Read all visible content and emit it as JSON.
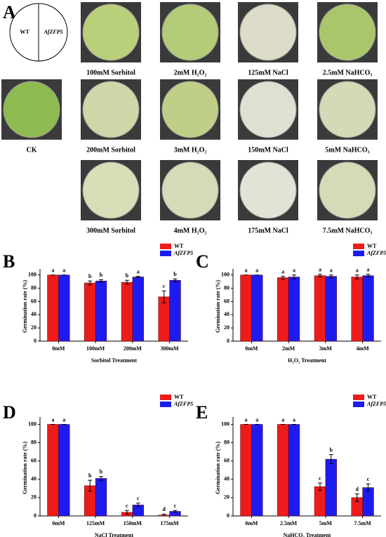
{
  "panel_a": {
    "panel": "A",
    "schematic": [
      "WT",
      "AfZFP5"
    ],
    "labels": [
      "100mM Sorbitol",
      "2mM H₂O₂",
      "125mM NaCl",
      "2.5mM NaHCO₃",
      "CK",
      "200mM Sorbitol",
      "3mM H₂O₂",
      "150mM NaCl",
      "5mM NaHCO₃",
      "300mM Sorbitol",
      "4mM H₂O₂",
      "175mM NaCl",
      "7.5mM NaHCO₃"
    ]
  },
  "chart_data": [
    {
      "type": "bar",
      "panel": "B",
      "y_label": "Germination rate (%)",
      "x_label": "Sorbitol Treatment",
      "categories": [
        "0mM",
        "100mM",
        "200mM",
        "300mM"
      ],
      "ylim": [
        0,
        105
      ],
      "yticks": [
        0,
        20,
        40,
        60,
        80,
        100
      ],
      "series": [
        {
          "name": "WT",
          "color": "#ee1b1b",
          "values": [
            100,
            88,
            89,
            67
          ],
          "errors": [
            0,
            3,
            3,
            9
          ],
          "letters": [
            "a",
            "b",
            "b",
            "c"
          ]
        },
        {
          "name": "AfZFP5",
          "color": "#1c1cf0",
          "values": [
            100,
            91,
            97,
            92
          ],
          "errors": [
            0,
            2,
            1,
            2
          ],
          "letters": [
            "a",
            "b",
            "a",
            "b"
          ]
        }
      ]
    },
    {
      "type": "bar",
      "panel": "C",
      "y_label": "Germination rate (%)",
      "x_label": "H₂O₂ Treatment",
      "categories": [
        "0mM",
        "2mM",
        "3mM",
        "4mM"
      ],
      "ylim": [
        0,
        105
      ],
      "yticks": [
        0,
        20,
        40,
        60,
        80,
        100
      ],
      "series": [
        {
          "name": "WT",
          "color": "#ee1b1b",
          "values": [
            100,
            96,
            99,
            97
          ],
          "errors": [
            0,
            2,
            2,
            3
          ],
          "letters": [
            "a",
            "a",
            "a",
            "a"
          ]
        },
        {
          "name": "AfZFP5",
          "color": "#1c1cf0",
          "values": [
            100,
            97,
            98,
            99
          ],
          "errors": [
            0,
            3,
            2,
            2
          ],
          "letters": [
            "a",
            "a",
            "a",
            "a"
          ]
        }
      ]
    },
    {
      "type": "bar",
      "panel": "D",
      "y_label": "Germination rate (%)",
      "x_label": "NaCl Treatment",
      "categories": [
        "0mM",
        "125mM",
        "150mM",
        "175mM"
      ],
      "ylim": [
        0,
        105
      ],
      "yticks": [
        0,
        20,
        40,
        60,
        80,
        100
      ],
      "series": [
        {
          "name": "WT",
          "color": "#ee1b1b",
          "values": [
            100,
            33,
            4,
            1
          ],
          "errors": [
            0,
            6,
            2,
            1
          ],
          "letters": [
            "a",
            "b",
            "c",
            "d"
          ]
        },
        {
          "name": "AfZFP5",
          "color": "#1c1cf0",
          "values": [
            100,
            41,
            12,
            5
          ],
          "errors": [
            0,
            2,
            2,
            1
          ],
          "letters": [
            "a",
            "b",
            "c",
            "c"
          ]
        }
      ]
    },
    {
      "type": "bar",
      "panel": "E",
      "y_label": "Germination rate (%)",
      "x_label": "NaHCO₃ Treatment",
      "categories": [
        "0mM",
        "2.5mM",
        "5mM",
        "7.5mM"
      ],
      "ylim": [
        0,
        105
      ],
      "yticks": [
        0,
        20,
        40,
        60,
        80,
        100
      ],
      "series": [
        {
          "name": "WT",
          "color": "#ee1b1b",
          "values": [
            100,
            100,
            32,
            20
          ],
          "errors": [
            0,
            0,
            4,
            4
          ],
          "letters": [
            "a",
            "a",
            "c",
            "d"
          ]
        },
        {
          "name": "AfZFP5",
          "color": "#1c1cf0",
          "values": [
            100,
            100,
            62,
            31
          ],
          "errors": [
            0,
            0,
            5,
            4
          ],
          "letters": [
            "a",
            "a",
            "b",
            "c"
          ]
        }
      ]
    }
  ]
}
